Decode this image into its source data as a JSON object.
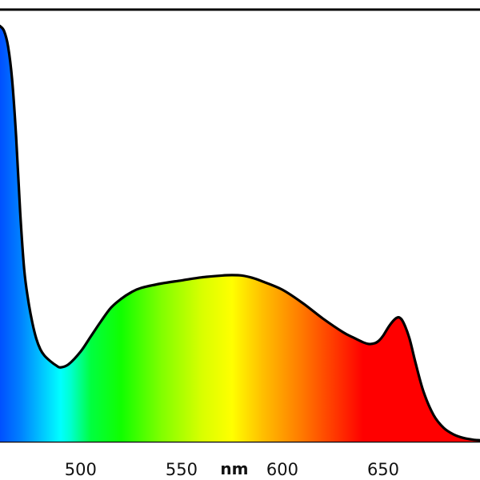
{
  "chart_data": {
    "type": "area",
    "title": "",
    "xlabel": "nm",
    "ylabel": "",
    "xlim": [
      460,
      698
    ],
    "ylim": [
      0,
      100
    ],
    "x_ticks": [
      500,
      550,
      600,
      650
    ],
    "tick_labels": [
      "500",
      "550",
      "600",
      "650"
    ],
    "grid": false,
    "legend": "none",
    "series": [
      {
        "x": [
          460,
          462,
          464,
          466,
          468,
          470,
          472,
          474,
          476,
          478,
          480,
          482,
          485,
          488,
          490,
          494,
          500,
          505,
          510,
          515,
          520,
          525,
          530,
          540,
          550,
          560,
          570,
          575,
          580,
          585,
          590,
          600,
          610,
          620,
          630,
          635,
          640,
          643,
          646,
          648,
          650,
          653,
          656,
          658,
          660,
          663,
          666,
          670,
          675,
          680,
          685,
          690,
          695,
          698
        ],
        "y": [
          94.1,
          93,
          89.5,
          82,
          69,
          52,
          39,
          32,
          27,
          23.3,
          20.9,
          19.5,
          18.2,
          17.2,
          16.8,
          17.5,
          20.4,
          23.8,
          27.2,
          30.3,
          32.3,
          33.8,
          34.8,
          35.8,
          36.5,
          37.2,
          37.6,
          37.7,
          37.6,
          37.1,
          36.3,
          34.4,
          31.4,
          27.9,
          24.8,
          23.6,
          22.5,
          22.1,
          22.3,
          22.9,
          24,
          26.2,
          27.8,
          28.1,
          27,
          23.4,
          17.9,
          11.3,
          6,
          3.1,
          1.6,
          0.8,
          0.4,
          0.3
        ]
      }
    ],
    "colors": {
      "line": "#000000",
      "gradient": [
        {
          "nm": 460,
          "color": "#0050ff"
        },
        {
          "nm": 470,
          "color": "#0080ff"
        },
        {
          "nm": 480,
          "color": "#00c0ff"
        },
        {
          "nm": 490,
          "color": "#00ffff"
        },
        {
          "nm": 495,
          "color": "#00ffd0"
        },
        {
          "nm": 505,
          "color": "#00ff40"
        },
        {
          "nm": 520,
          "color": "#10ff00"
        },
        {
          "nm": 540,
          "color": "#80ff00"
        },
        {
          "nm": 560,
          "color": "#d8ff00"
        },
        {
          "nm": 575,
          "color": "#ffff00"
        },
        {
          "nm": 590,
          "color": "#ffc000"
        },
        {
          "nm": 610,
          "color": "#ff7800"
        },
        {
          "nm": 630,
          "color": "#ff2800"
        },
        {
          "nm": 640,
          "color": "#ff0000"
        },
        {
          "nm": 698,
          "color": "#ff0000"
        }
      ]
    }
  }
}
